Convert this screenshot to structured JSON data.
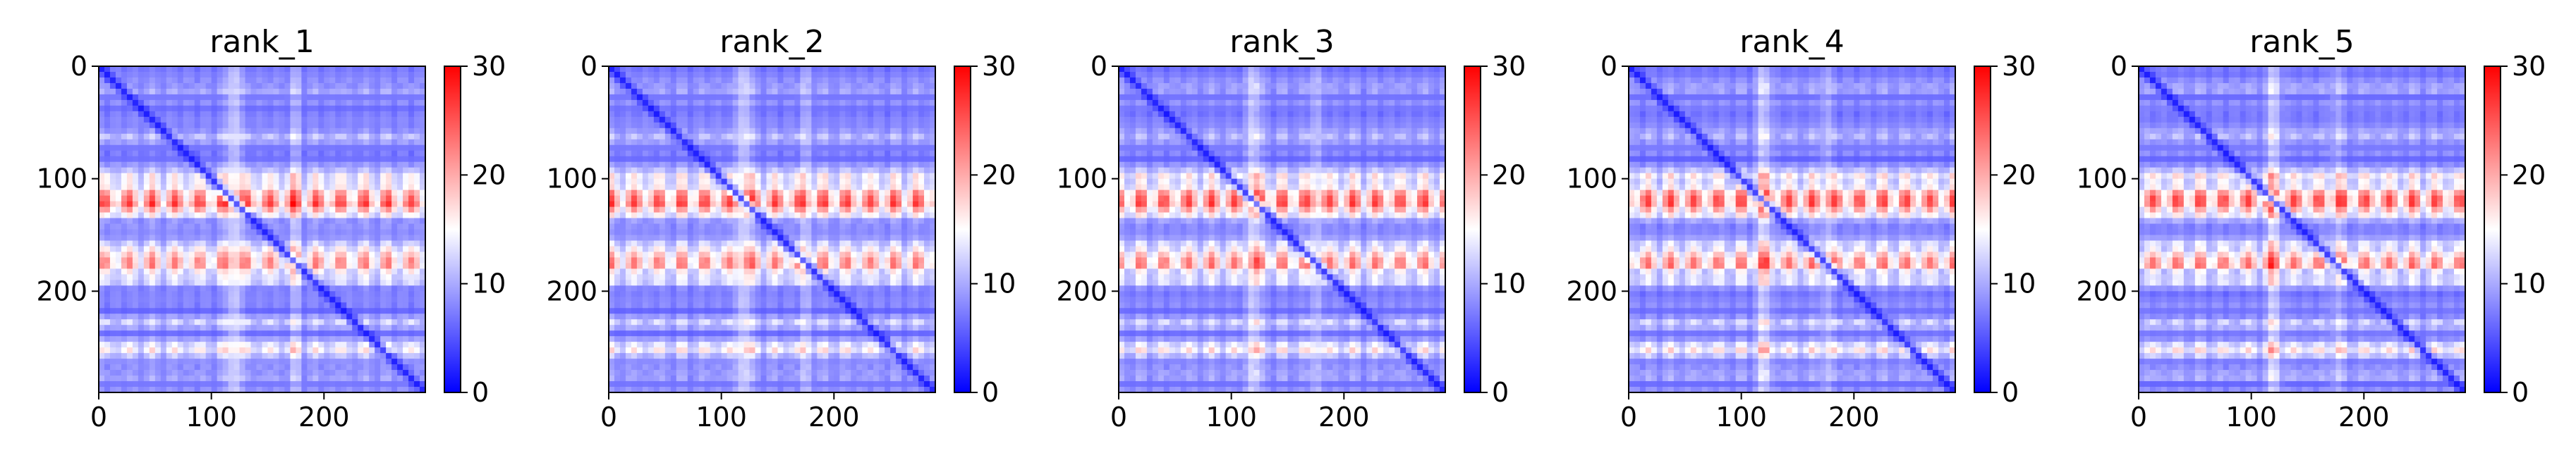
{
  "figure": {
    "panels": [
      {
        "title": "rank_1"
      },
      {
        "title": "rank_2"
      },
      {
        "title": "rank_3"
      },
      {
        "title": "rank_4"
      },
      {
        "title": "rank_5"
      }
    ]
  },
  "chart_data": [
    {
      "type": "heatmap",
      "title": "rank_1",
      "xlabel": "",
      "ylabel": "",
      "xlim": [
        0,
        290
      ],
      "ylim": [
        290,
        0
      ],
      "xticks": [
        0,
        100,
        200
      ],
      "yticks": [
        0,
        100,
        200
      ],
      "colorbar": {
        "min": 0,
        "max": 30,
        "ticks": [
          0,
          10,
          20,
          30
        ],
        "colormap": "bwr"
      },
      "grid": false,
      "colors": {
        "low": "#0000ff",
        "mid": "#ffffff",
        "high": "#ff0000"
      }
    },
    {
      "type": "heatmap",
      "title": "rank_2",
      "xlabel": "",
      "ylabel": "",
      "xlim": [
        0,
        290
      ],
      "ylim": [
        290,
        0
      ],
      "xticks": [
        0,
        100,
        200
      ],
      "yticks": [
        0,
        100,
        200
      ],
      "colorbar": {
        "min": 0,
        "max": 30,
        "ticks": [
          0,
          10,
          20,
          30
        ],
        "colormap": "bwr"
      },
      "grid": false,
      "colors": {
        "low": "#0000ff",
        "mid": "#ffffff",
        "high": "#ff0000"
      }
    },
    {
      "type": "heatmap",
      "title": "rank_3",
      "xlabel": "",
      "ylabel": "",
      "xlim": [
        0,
        290
      ],
      "ylim": [
        290,
        0
      ],
      "xticks": [
        0,
        100,
        200
      ],
      "yticks": [
        0,
        100,
        200
      ],
      "colorbar": {
        "min": 0,
        "max": 30,
        "ticks": [
          0,
          10,
          20,
          30
        ],
        "colormap": "bwr"
      },
      "grid": false,
      "colors": {
        "low": "#0000ff",
        "mid": "#ffffff",
        "high": "#ff0000"
      }
    },
    {
      "type": "heatmap",
      "title": "rank_4",
      "xlabel": "",
      "ylabel": "",
      "xlim": [
        0,
        290
      ],
      "ylim": [
        290,
        0
      ],
      "xticks": [
        0,
        100,
        200
      ],
      "yticks": [
        0,
        100,
        200
      ],
      "colorbar": {
        "min": 0,
        "max": 30,
        "ticks": [
          0,
          10,
          20,
          30
        ],
        "colormap": "bwr"
      },
      "grid": false,
      "colors": {
        "low": "#0000ff",
        "mid": "#ffffff",
        "high": "#ff0000"
      }
    },
    {
      "type": "heatmap",
      "title": "rank_5",
      "xlabel": "",
      "ylabel": "",
      "xlim": [
        0,
        290
      ],
      "ylim": [
        290,
        0
      ],
      "xticks": [
        0,
        100,
        200
      ],
      "yticks": [
        0,
        100,
        200
      ],
      "colorbar": {
        "min": 0,
        "max": 30,
        "ticks": [
          0,
          10,
          20,
          30
        ],
        "colormap": "bwr"
      },
      "grid": false,
      "colors": {
        "low": "#0000ff",
        "mid": "#ffffff",
        "high": "#ff0000"
      }
    }
  ]
}
